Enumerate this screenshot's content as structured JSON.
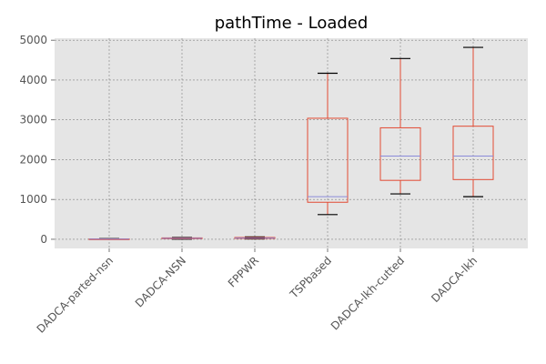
{
  "chart_data": {
    "type": "box",
    "title": "pathTime - Loaded",
    "xlabel": "",
    "ylabel": "",
    "ylim": [
      -230,
      5050
    ],
    "yticks": [
      0,
      1000,
      2000,
      3000,
      4000,
      5000
    ],
    "grid": true,
    "categories": [
      "DADCA-parted-nsn",
      "DADCA-NSN",
      "FPPWR",
      "TSPbased",
      "DADCA-lkh-cutted",
      "DADCA-lkh"
    ],
    "boxes": [
      {
        "whisker_low": 0,
        "q1": 2,
        "median": 5,
        "q3": 10,
        "whisker_high": 15
      },
      {
        "whisker_low": 5,
        "q1": 15,
        "median": 25,
        "q3": 35,
        "whisker_high": 45
      },
      {
        "whisker_low": 10,
        "q1": 20,
        "median": 30,
        "q3": 45,
        "whisker_high": 60
      },
      {
        "whisker_low": 620,
        "q1": 930,
        "median": 1070,
        "q3": 3040,
        "whisker_high": 4170
      },
      {
        "whisker_low": 1140,
        "q1": 1480,
        "median": 2090,
        "q3": 2800,
        "whisker_high": 4540
      },
      {
        "whisker_low": 1070,
        "q1": 1500,
        "median": 2090,
        "q3": 2840,
        "whisker_high": 4820
      }
    ],
    "colors": {
      "plot_background": "#e5e5e5",
      "grid": "#808080",
      "box": "#e24a33",
      "median": "#8b8bd9",
      "cap": "#000000"
    }
  }
}
